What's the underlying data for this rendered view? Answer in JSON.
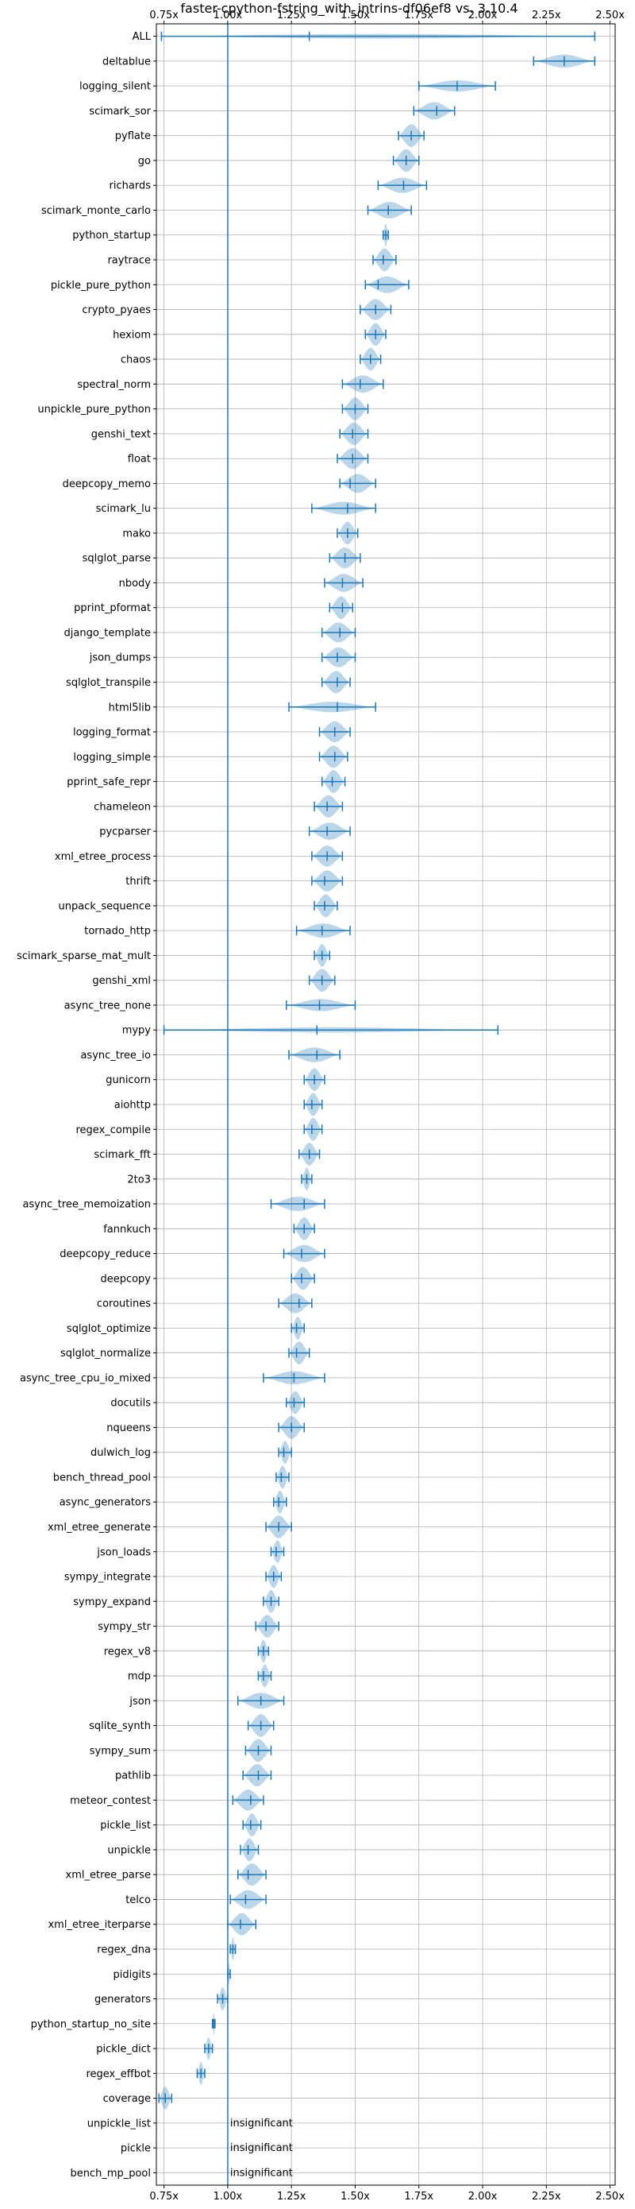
{
  "chart_data": {
    "type": "violin",
    "title": "faster-cpython-fstring_with_intrins-df06ef8 vs. 3.10.4",
    "xlim": [
      0.72,
      2.52
    ],
    "x_ticks": [
      0.75,
      1.0,
      1.25,
      1.5,
      1.75,
      2.0,
      2.25,
      2.5
    ],
    "x_tick_labels": [
      "0.75x",
      "1.00x",
      "1.25x",
      "1.50x",
      "1.75x",
      "2.00x",
      "2.25x",
      "2.50x"
    ],
    "baseline": 1.0,
    "grid": true,
    "ticks_top_and_bottom": true,
    "benchmarks": [
      {
        "name": "ALL",
        "min": 0.74,
        "max": 2.44,
        "median": 1.32
      },
      {
        "name": "deltablue",
        "min": 2.2,
        "max": 2.44,
        "median": 2.32
      },
      {
        "name": "logging_silent",
        "min": 1.75,
        "max": 2.05,
        "median": 1.9
      },
      {
        "name": "scimark_sor",
        "min": 1.73,
        "max": 1.89,
        "median": 1.82
      },
      {
        "name": "pyflate",
        "min": 1.67,
        "max": 1.77,
        "median": 1.72
      },
      {
        "name": "go",
        "min": 1.65,
        "max": 1.75,
        "median": 1.7
      },
      {
        "name": "richards",
        "min": 1.59,
        "max": 1.78,
        "median": 1.69
      },
      {
        "name": "scimark_monte_carlo",
        "min": 1.55,
        "max": 1.72,
        "median": 1.63
      },
      {
        "name": "python_startup",
        "min": 1.61,
        "max": 1.63,
        "median": 1.62
      },
      {
        "name": "raytrace",
        "min": 1.57,
        "max": 1.66,
        "median": 1.61
      },
      {
        "name": "pickle_pure_python",
        "min": 1.54,
        "max": 1.71,
        "median": 1.59
      },
      {
        "name": "crypto_pyaes",
        "min": 1.52,
        "max": 1.64,
        "median": 1.58
      },
      {
        "name": "hexiom",
        "min": 1.54,
        "max": 1.62,
        "median": 1.58
      },
      {
        "name": "chaos",
        "min": 1.52,
        "max": 1.6,
        "median": 1.56
      },
      {
        "name": "spectral_norm",
        "min": 1.45,
        "max": 1.61,
        "median": 1.52
      },
      {
        "name": "unpickle_pure_python",
        "min": 1.45,
        "max": 1.55,
        "median": 1.5
      },
      {
        "name": "genshi_text",
        "min": 1.44,
        "max": 1.55,
        "median": 1.49
      },
      {
        "name": "float",
        "min": 1.43,
        "max": 1.55,
        "median": 1.49
      },
      {
        "name": "deepcopy_memo",
        "min": 1.44,
        "max": 1.58,
        "median": 1.48
      },
      {
        "name": "scimark_lu",
        "min": 1.33,
        "max": 1.58,
        "median": 1.47
      },
      {
        "name": "mako",
        "min": 1.43,
        "max": 1.51,
        "median": 1.47
      },
      {
        "name": "sqlglot_parse",
        "min": 1.4,
        "max": 1.52,
        "median": 1.46
      },
      {
        "name": "nbody",
        "min": 1.38,
        "max": 1.53,
        "median": 1.45
      },
      {
        "name": "pprint_pformat",
        "min": 1.4,
        "max": 1.49,
        "median": 1.45
      },
      {
        "name": "django_template",
        "min": 1.37,
        "max": 1.5,
        "median": 1.44
      },
      {
        "name": "json_dumps",
        "min": 1.37,
        "max": 1.5,
        "median": 1.43
      },
      {
        "name": "sqlglot_transpile",
        "min": 1.37,
        "max": 1.48,
        "median": 1.43
      },
      {
        "name": "html5lib",
        "min": 1.24,
        "max": 1.58,
        "median": 1.43
      },
      {
        "name": "logging_format",
        "min": 1.36,
        "max": 1.48,
        "median": 1.42
      },
      {
        "name": "logging_simple",
        "min": 1.36,
        "max": 1.47,
        "median": 1.42
      },
      {
        "name": "pprint_safe_repr",
        "min": 1.37,
        "max": 1.46,
        "median": 1.41
      },
      {
        "name": "chameleon",
        "min": 1.34,
        "max": 1.45,
        "median": 1.39
      },
      {
        "name": "pycparser",
        "min": 1.32,
        "max": 1.48,
        "median": 1.39
      },
      {
        "name": "xml_etree_process",
        "min": 1.33,
        "max": 1.45,
        "median": 1.39
      },
      {
        "name": "thrift",
        "min": 1.33,
        "max": 1.45,
        "median": 1.38
      },
      {
        "name": "unpack_sequence",
        "min": 1.34,
        "max": 1.43,
        "median": 1.38
      },
      {
        "name": "tornado_http",
        "min": 1.27,
        "max": 1.48,
        "median": 1.37
      },
      {
        "name": "scimark_sparse_mat_mult",
        "min": 1.34,
        "max": 1.4,
        "median": 1.37
      },
      {
        "name": "genshi_xml",
        "min": 1.32,
        "max": 1.42,
        "median": 1.37
      },
      {
        "name": "async_tree_none",
        "min": 1.23,
        "max": 1.5,
        "median": 1.36
      },
      {
        "name": "mypy",
        "min": 0.75,
        "max": 2.06,
        "median": 1.35
      },
      {
        "name": "async_tree_io",
        "min": 1.24,
        "max": 1.44,
        "median": 1.35
      },
      {
        "name": "gunicorn",
        "min": 1.3,
        "max": 1.38,
        "median": 1.34
      },
      {
        "name": "aiohttp",
        "min": 1.3,
        "max": 1.37,
        "median": 1.33
      },
      {
        "name": "regex_compile",
        "min": 1.3,
        "max": 1.37,
        "median": 1.33
      },
      {
        "name": "scimark_fft",
        "min": 1.28,
        "max": 1.36,
        "median": 1.32
      },
      {
        "name": "2to3",
        "min": 1.29,
        "max": 1.33,
        "median": 1.31
      },
      {
        "name": "async_tree_memoization",
        "min": 1.17,
        "max": 1.38,
        "median": 1.3
      },
      {
        "name": "fannkuch",
        "min": 1.26,
        "max": 1.34,
        "median": 1.3
      },
      {
        "name": "deepcopy_reduce",
        "min": 1.22,
        "max": 1.38,
        "median": 1.29
      },
      {
        "name": "deepcopy",
        "min": 1.25,
        "max": 1.34,
        "median": 1.29
      },
      {
        "name": "coroutines",
        "min": 1.2,
        "max": 1.33,
        "median": 1.28
      },
      {
        "name": "sqlglot_optimize",
        "min": 1.25,
        "max": 1.3,
        "median": 1.27
      },
      {
        "name": "sqlglot_normalize",
        "min": 1.24,
        "max": 1.32,
        "median": 1.27
      },
      {
        "name": "async_tree_cpu_io_mixed",
        "min": 1.14,
        "max": 1.38,
        "median": 1.26
      },
      {
        "name": "docutils",
        "min": 1.23,
        "max": 1.3,
        "median": 1.26
      },
      {
        "name": "nqueens",
        "min": 1.2,
        "max": 1.3,
        "median": 1.25
      },
      {
        "name": "dulwich_log",
        "min": 1.2,
        "max": 1.25,
        "median": 1.22
      },
      {
        "name": "bench_thread_pool",
        "min": 1.19,
        "max": 1.24,
        "median": 1.21
      },
      {
        "name": "async_generators",
        "min": 1.18,
        "max": 1.23,
        "median": 1.2
      },
      {
        "name": "xml_etree_generate",
        "min": 1.15,
        "max": 1.25,
        "median": 1.2
      },
      {
        "name": "json_loads",
        "min": 1.17,
        "max": 1.22,
        "median": 1.19
      },
      {
        "name": "sympy_integrate",
        "min": 1.15,
        "max": 1.21,
        "median": 1.18
      },
      {
        "name": "sympy_expand",
        "min": 1.14,
        "max": 1.2,
        "median": 1.17
      },
      {
        "name": "sympy_str",
        "min": 1.11,
        "max": 1.2,
        "median": 1.15
      },
      {
        "name": "regex_v8",
        "min": 1.12,
        "max": 1.16,
        "median": 1.14
      },
      {
        "name": "mdp",
        "min": 1.12,
        "max": 1.17,
        "median": 1.14
      },
      {
        "name": "json",
        "min": 1.04,
        "max": 1.22,
        "median": 1.13
      },
      {
        "name": "sqlite_synth",
        "min": 1.08,
        "max": 1.18,
        "median": 1.13
      },
      {
        "name": "sympy_sum",
        "min": 1.07,
        "max": 1.17,
        "median": 1.12
      },
      {
        "name": "pathlib",
        "min": 1.06,
        "max": 1.17,
        "median": 1.12
      },
      {
        "name": "meteor_contest",
        "min": 1.02,
        "max": 1.14,
        "median": 1.09
      },
      {
        "name": "pickle_list",
        "min": 1.06,
        "max": 1.13,
        "median": 1.09
      },
      {
        "name": "unpickle",
        "min": 1.05,
        "max": 1.12,
        "median": 1.08
      },
      {
        "name": "xml_etree_parse",
        "min": 1.04,
        "max": 1.15,
        "median": 1.08
      },
      {
        "name": "telco",
        "min": 1.01,
        "max": 1.15,
        "median": 1.07
      },
      {
        "name": "xml_etree_iterparse",
        "min": 1.0,
        "max": 1.11,
        "median": 1.05
      },
      {
        "name": "regex_dna",
        "min": 1.01,
        "max": 1.03,
        "median": 1.02
      },
      {
        "name": "pidigits",
        "min": 1.0,
        "max": 1.01,
        "median": 1.0
      },
      {
        "name": "generators",
        "min": 0.96,
        "max": 1.0,
        "median": 0.98
      },
      {
        "name": "python_startup_no_site",
        "min": 0.94,
        "max": 0.95,
        "median": 0.945
      },
      {
        "name": "pickle_dict",
        "min": 0.91,
        "max": 0.94,
        "median": 0.925
      },
      {
        "name": "regex_effbot",
        "min": 0.88,
        "max": 0.91,
        "median": 0.895
      },
      {
        "name": "coverage",
        "min": 0.73,
        "max": 0.78,
        "median": 0.755
      },
      {
        "name": "unpickle_list",
        "insignificant": true
      },
      {
        "name": "pickle",
        "insignificant": true
      },
      {
        "name": "bench_mp_pool",
        "insignificant": true
      }
    ],
    "annotation_text": "insignificant"
  }
}
